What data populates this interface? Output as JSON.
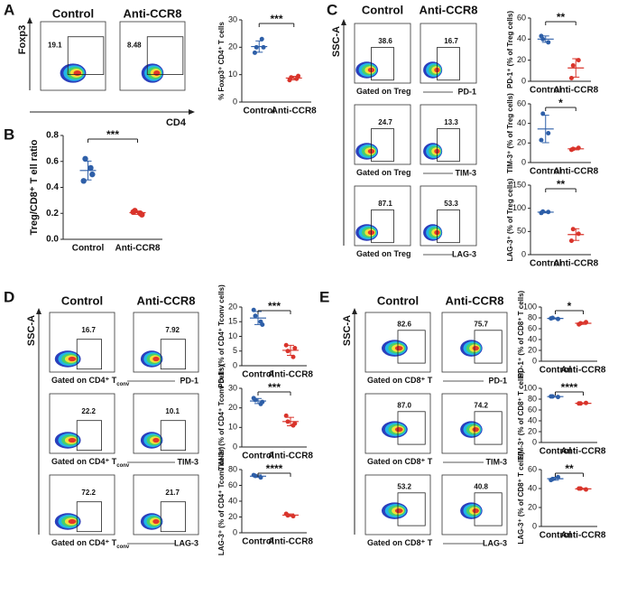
{
  "panels": [
    "A",
    "B",
    "C",
    "D",
    "E"
  ],
  "flow_groups": [
    {
      "headers": [
        "Control",
        "Anti-CCR8"
      ],
      "ylabel": "Foxp3",
      "xlabel": "CD4",
      "rows": [
        {
          "values": [
            "19.1",
            "8.48"
          ]
        }
      ]
    },
    {
      "headers": [
        "Control",
        "Anti-CCR8"
      ],
      "ylabel": "SSC-A",
      "rows": [
        {
          "gated": "Gated on Treg",
          "marker": "PD-1",
          "values": [
            "38.6",
            "16.7"
          ]
        },
        {
          "gated": "Gated on Treg",
          "marker": "TIM-3",
          "values": [
            "24.7",
            "13.3"
          ]
        },
        {
          "gated": "Gated on Treg",
          "marker": "LAG-3",
          "values": [
            "87.1",
            "53.3"
          ]
        }
      ]
    },
    {
      "headers": [
        "Control",
        "Anti-CCR8"
      ],
      "ylabel": "SSC-A",
      "rows": [
        {
          "gated": "Gated on CD4⁺ T",
          "gated_sub": "conv",
          "marker": "PD-1",
          "values": [
            "16.7",
            "7.92"
          ]
        },
        {
          "gated": "Gated on CD4⁺ T",
          "gated_sub": "conv",
          "marker": "TIM-3",
          "values": [
            "22.2",
            "10.1"
          ]
        },
        {
          "gated": "Gated on CD4⁺ T",
          "gated_sub": "conv",
          "marker": "LAG-3",
          "values": [
            "72.2",
            "21.7"
          ]
        }
      ]
    },
    {
      "headers": [
        "Control",
        "Anti-CCR8"
      ],
      "ylabel": "SSC-A",
      "rows": [
        {
          "gated": "Gated on CD8⁺ T",
          "marker": "PD-1",
          "values": [
            "82.6",
            "75.7"
          ]
        },
        {
          "gated": "Gated on CD8⁺ T",
          "marker": "TIM-3",
          "values": [
            "87.0",
            "74.2"
          ]
        },
        {
          "gated": "Gated on CD8⁺ T",
          "marker": "LAG-3",
          "values": [
            "53.2",
            "40.8"
          ]
        }
      ]
    }
  ],
  "chart_data": [
    {
      "type": "dot",
      "ylabel": "% Foxp3⁺ CD4⁺ T cells",
      "categories": [
        "Control",
        "Anti-CCR8"
      ],
      "colors": [
        "#2e5fa8",
        "#d9342b"
      ],
      "values": [
        [
          20,
          23,
          18,
          20
        ],
        [
          9,
          8.5,
          8,
          9.5
        ]
      ],
      "significance": "***",
      "ylim": [
        0,
        30
      ],
      "yticks": [
        0,
        10,
        20,
        30
      ]
    },
    {
      "type": "dot",
      "ylabel": "Treg/CD8⁺ T ell ratio",
      "categories": [
        "Control",
        "Anti-CCR8"
      ],
      "colors": [
        "#2e5fa8",
        "#d9342b"
      ],
      "values": [
        [
          0.62,
          0.55,
          0.45,
          0.5
        ],
        [
          0.22,
          0.2,
          0.21,
          0.19
        ]
      ],
      "significance": "***",
      "ylim": [
        0,
        0.8
      ],
      "yticks": [
        {
          "value": 0,
          "label": "0.0"
        },
        0.2,
        0.4,
        0.6,
        0.8
      ]
    },
    {
      "type": "dot",
      "ylabel": "PD-1⁺ (% of Treg cells)",
      "categories": [
        "Control",
        "Anti-CCR8"
      ],
      "colors": [
        "#2e5fa8",
        "#d9342b"
      ],
      "values": [
        [
          40,
          37,
          43
        ],
        [
          15,
          20,
          3
        ]
      ],
      "significance": "**",
      "ylim": [
        0,
        60
      ],
      "yticks": [
        0,
        20,
        40,
        60
      ]
    },
    {
      "type": "dot",
      "ylabel": "TIM-3⁺ (% of Treg cells)",
      "categories": [
        "Control",
        "Anti-CCR8"
      ],
      "colors": [
        "#2e5fa8",
        "#d9342b"
      ],
      "values": [
        [
          50,
          30,
          23
        ],
        [
          14,
          15,
          13
        ]
      ],
      "significance": "*",
      "ylim": [
        0,
        60
      ],
      "yticks": [
        0,
        20,
        40,
        60
      ]
    },
    {
      "type": "dot",
      "ylabel": "LAG-3⁺ (% of Treg cells)",
      "categories": [
        "Control",
        "Anti-CCR8"
      ],
      "colors": [
        "#2e5fa8",
        "#d9342b"
      ],
      "values": [
        [
          93,
          92,
          90
        ],
        [
          55,
          45,
          30
        ]
      ],
      "significance": "**",
      "ylim": [
        0,
        150
      ],
      "yticks": [
        0,
        50,
        100,
        150
      ]
    },
    {
      "type": "dot",
      "ylabel": "PD-1⁺ (% of CD4⁺ Tconv cells)",
      "categories": [
        "Control",
        "Anti-CCR8"
      ],
      "colors": [
        "#2e5fa8",
        "#d9342b"
      ],
      "values": [
        [
          17,
          15,
          19,
          14
        ],
        [
          5,
          3,
          7,
          6
        ]
      ],
      "significance": "***",
      "ylim": [
        0,
        20
      ],
      "yticks": [
        0,
        5,
        10,
        15,
        20
      ]
    },
    {
      "type": "dot",
      "ylabel": "TIM-3⁺ (% of CD4⁺ Tconv cells)",
      "categories": [
        "Control",
        "Anti-CCR8"
      ],
      "colors": [
        "#2e5fa8",
        "#d9342b"
      ],
      "values": [
        [
          24,
          22,
          25,
          23
        ],
        [
          13,
          11,
          16,
          12
        ]
      ],
      "significance": "***",
      "ylim": [
        0,
        30
      ],
      "yticks": [
        0,
        10,
        20,
        30
      ]
    },
    {
      "type": "dot",
      "ylabel": "LAG-3⁺ (% of CD4⁺ Tconv cells)",
      "categories": [
        "Control",
        "Anti-CCR8"
      ],
      "colors": [
        "#2e5fa8",
        "#d9342b"
      ],
      "values": [
        [
          72,
          70,
          73
        ],
        [
          22,
          21,
          24
        ]
      ],
      "significance": "****",
      "ylim": [
        0,
        80
      ],
      "yticks": [
        0,
        20,
        40,
        60,
        80
      ]
    },
    {
      "type": "dot",
      "ylabel": "PD-1⁺ (% of CD8⁺ T cells)",
      "categories": [
        "Control",
        "Anti-CCR8"
      ],
      "colors": [
        "#2e5fa8",
        "#d9342b"
      ],
      "values": [
        [
          80,
          78,
          79
        ],
        [
          70,
          72,
          68
        ]
      ],
      "significance": "*",
      "ylim": [
        0,
        100
      ],
      "yticks": [
        0,
        20,
        40,
        60,
        80,
        100
      ]
    },
    {
      "type": "dot",
      "ylabel": "TIM-3⁺ (% of CD8⁺ T cells)",
      "categories": [
        "Control",
        "Anti-CCR8"
      ],
      "colors": [
        "#2e5fa8",
        "#d9342b"
      ],
      "values": [
        [
          85,
          84,
          85
        ],
        [
          72,
          73,
          72
        ]
      ],
      "significance": "****",
      "ylim": [
        0,
        100
      ],
      "yticks": [
        0,
        20,
        40,
        60,
        80,
        100
      ]
    },
    {
      "type": "dot",
      "ylabel": "LAG-3⁺ (% of CD8⁺ T cells)",
      "categories": [
        "Control",
        "Anti-CCR8"
      ],
      "colors": [
        "#2e5fa8",
        "#d9342b"
      ],
      "values": [
        [
          50,
          52,
          49
        ],
        [
          40,
          39,
          40
        ]
      ],
      "significance": "**",
      "ylim": [
        0,
        60
      ],
      "yticks": [
        0,
        20,
        40,
        60
      ]
    }
  ]
}
